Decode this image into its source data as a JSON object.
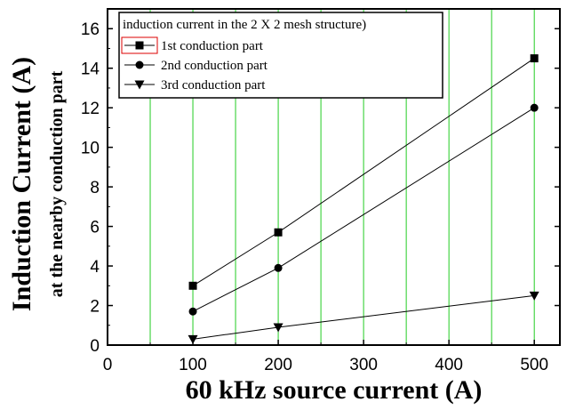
{
  "chart_data": {
    "type": "line",
    "title": "",
    "xlabel": "60 kHz source current (A)",
    "ylabel": "Induction Current (A)",
    "ylabel_sub": "at the nearby conduction part",
    "xlim": [
      0,
      530
    ],
    "ylim": [
      0,
      17
    ],
    "xticks": [
      0,
      100,
      200,
      300,
      400,
      500
    ],
    "yticks": [
      0,
      2,
      4,
      6,
      8,
      10,
      12,
      14,
      16
    ],
    "vertical_gridlines": [
      50,
      100,
      150,
      200,
      250,
      300,
      350,
      400,
      450,
      500
    ],
    "grid": "vertical",
    "legend_title": "induction current in the 2 X 2 mesh structure)",
    "legend_placement": "top-left",
    "colors": {
      "grid": "#22cc22",
      "series": "#000000",
      "legend_highlight": "#dd0000"
    },
    "x": [
      100,
      200,
      500
    ],
    "series": [
      {
        "name": "1st conduction part",
        "marker": "square",
        "values": [
          3.0,
          5.7,
          14.5
        ]
      },
      {
        "name": "2nd conduction part",
        "marker": "circle",
        "values": [
          1.7,
          3.9,
          12.0
        ]
      },
      {
        "name": "3rd conduction part",
        "marker": "triangle-down",
        "values": [
          0.3,
          0.9,
          2.5
        ]
      }
    ]
  }
}
